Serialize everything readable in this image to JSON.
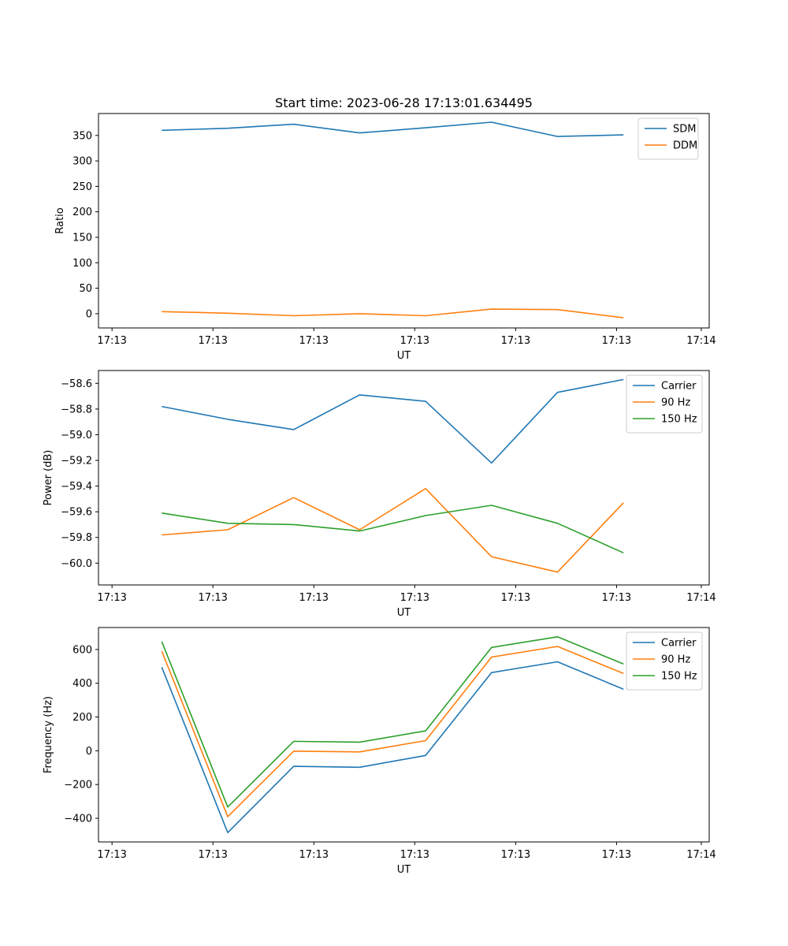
{
  "chart_data": [
    {
      "type": "line",
      "title": "Start time: 2023-06-28 17:13:01.634495",
      "xlabel": "UT",
      "ylabel": "Ratio",
      "x_tick_labels": [
        "17:13",
        "17:13",
        "17:13",
        "17:13",
        "17:13",
        "17:13",
        "17:14"
      ],
      "y_ticks": [
        0,
        50,
        100,
        150,
        200,
        250,
        300,
        350
      ],
      "ylim": [
        -28,
        393
      ],
      "legend": "top-right",
      "series": [
        {
          "name": "SDM",
          "color": "#1f77b4",
          "values": [
            360,
            364,
            372,
            355,
            365,
            376,
            348,
            351
          ]
        },
        {
          "name": "DDM",
          "color": "#ff7f0e",
          "values": [
            4,
            1,
            -4,
            0,
            -4,
            9,
            8,
            -8
          ]
        }
      ]
    },
    {
      "type": "line",
      "title": "",
      "xlabel": "UT",
      "ylabel": "Power (dB)",
      "x_tick_labels": [
        "17:13",
        "17:13",
        "17:13",
        "17:13",
        "17:13",
        "17:13",
        "17:14"
      ],
      "y_ticks": [
        -60.0,
        -59.8,
        -59.6,
        -59.4,
        -59.2,
        -59.0,
        -58.8,
        -58.6
      ],
      "ylim": [
        -60.17,
        -58.5
      ],
      "legend": "top-right",
      "series": [
        {
          "name": "Carrier",
          "color": "#1f77b4",
          "values": [
            -58.78,
            -58.88,
            -58.96,
            -58.69,
            -58.74,
            -59.22,
            -58.67,
            -58.57
          ]
        },
        {
          "name": "90 Hz",
          "color": "#ff7f0e",
          "values": [
            -59.78,
            -59.74,
            -59.49,
            -59.74,
            -59.42,
            -59.95,
            -60.07,
            -59.53
          ]
        },
        {
          "name": "150 Hz",
          "color": "#2ca02c",
          "values": [
            -59.61,
            -59.69,
            -59.7,
            -59.75,
            -59.63,
            -59.55,
            -59.69,
            -59.92
          ]
        }
      ]
    },
    {
      "type": "line",
      "title": "",
      "xlabel": "UT",
      "ylabel": "Frequency (Hz)",
      "x_tick_labels": [
        "17:13",
        "17:13",
        "17:13",
        "17:13",
        "17:13",
        "17:13",
        "17:14"
      ],
      "y_ticks": [
        -400,
        -200,
        0,
        200,
        400,
        600
      ],
      "ylim": [
        -540,
        730
      ],
      "legend": "top-right",
      "series": [
        {
          "name": "Carrier",
          "color": "#1f77b4",
          "values": [
            495,
            -485,
            -92,
            -98,
            -28,
            463,
            527,
            365
          ]
        },
        {
          "name": "90 Hz",
          "color": "#ff7f0e",
          "values": [
            590,
            -390,
            -2,
            -7,
            60,
            555,
            618,
            458
          ]
        },
        {
          "name": "150 Hz",
          "color": "#2ca02c",
          "values": [
            647,
            -333,
            56,
            51,
            118,
            612,
            675,
            514
          ]
        }
      ]
    }
  ]
}
